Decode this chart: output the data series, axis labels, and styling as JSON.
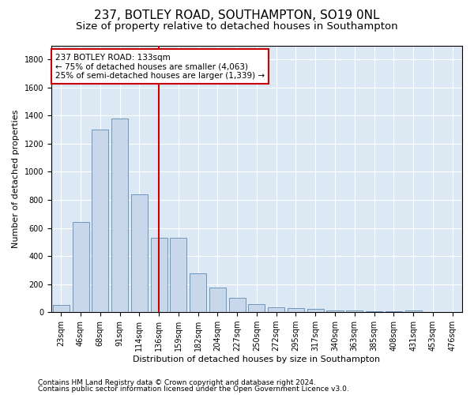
{
  "title1": "237, BOTLEY ROAD, SOUTHAMPTON, SO19 0NL",
  "title2": "Size of property relative to detached houses in Southampton",
  "xlabel": "Distribution of detached houses by size in Southampton",
  "ylabel": "Number of detached properties",
  "categories": [
    "23sqm",
    "46sqm",
    "68sqm",
    "91sqm",
    "114sqm",
    "136sqm",
    "159sqm",
    "182sqm",
    "204sqm",
    "227sqm",
    "250sqm",
    "272sqm",
    "295sqm",
    "317sqm",
    "340sqm",
    "363sqm",
    "385sqm",
    "408sqm",
    "431sqm",
    "453sqm",
    "476sqm"
  ],
  "values": [
    50,
    640,
    1300,
    1380,
    840,
    530,
    530,
    275,
    175,
    105,
    60,
    35,
    30,
    25,
    15,
    15,
    5,
    5,
    12,
    3,
    3
  ],
  "bar_color": "#c8d8ea",
  "bar_edge_color": "#5b8ab5",
  "vline_x": 5,
  "vline_color": "#cc0000",
  "annotation_text": "237 BOTLEY ROAD: 133sqm\n← 75% of detached houses are smaller (4,063)\n25% of semi-detached houses are larger (1,339) →",
  "annotation_box_color": "#ffffff",
  "annotation_box_edge": "#cc0000",
  "ylim": [
    0,
    1900
  ],
  "yticks": [
    0,
    200,
    400,
    600,
    800,
    1000,
    1200,
    1400,
    1600,
    1800
  ],
  "plot_bg_color": "#dce9f5",
  "footer1": "Contains HM Land Registry data © Crown copyright and database right 2024.",
  "footer2": "Contains public sector information licensed under the Open Government Licence v3.0.",
  "title1_fontsize": 11,
  "title2_fontsize": 9.5,
  "tick_fontsize": 7,
  "label_fontsize": 8,
  "footer_fontsize": 6.5,
  "annotation_fontsize": 7.5
}
